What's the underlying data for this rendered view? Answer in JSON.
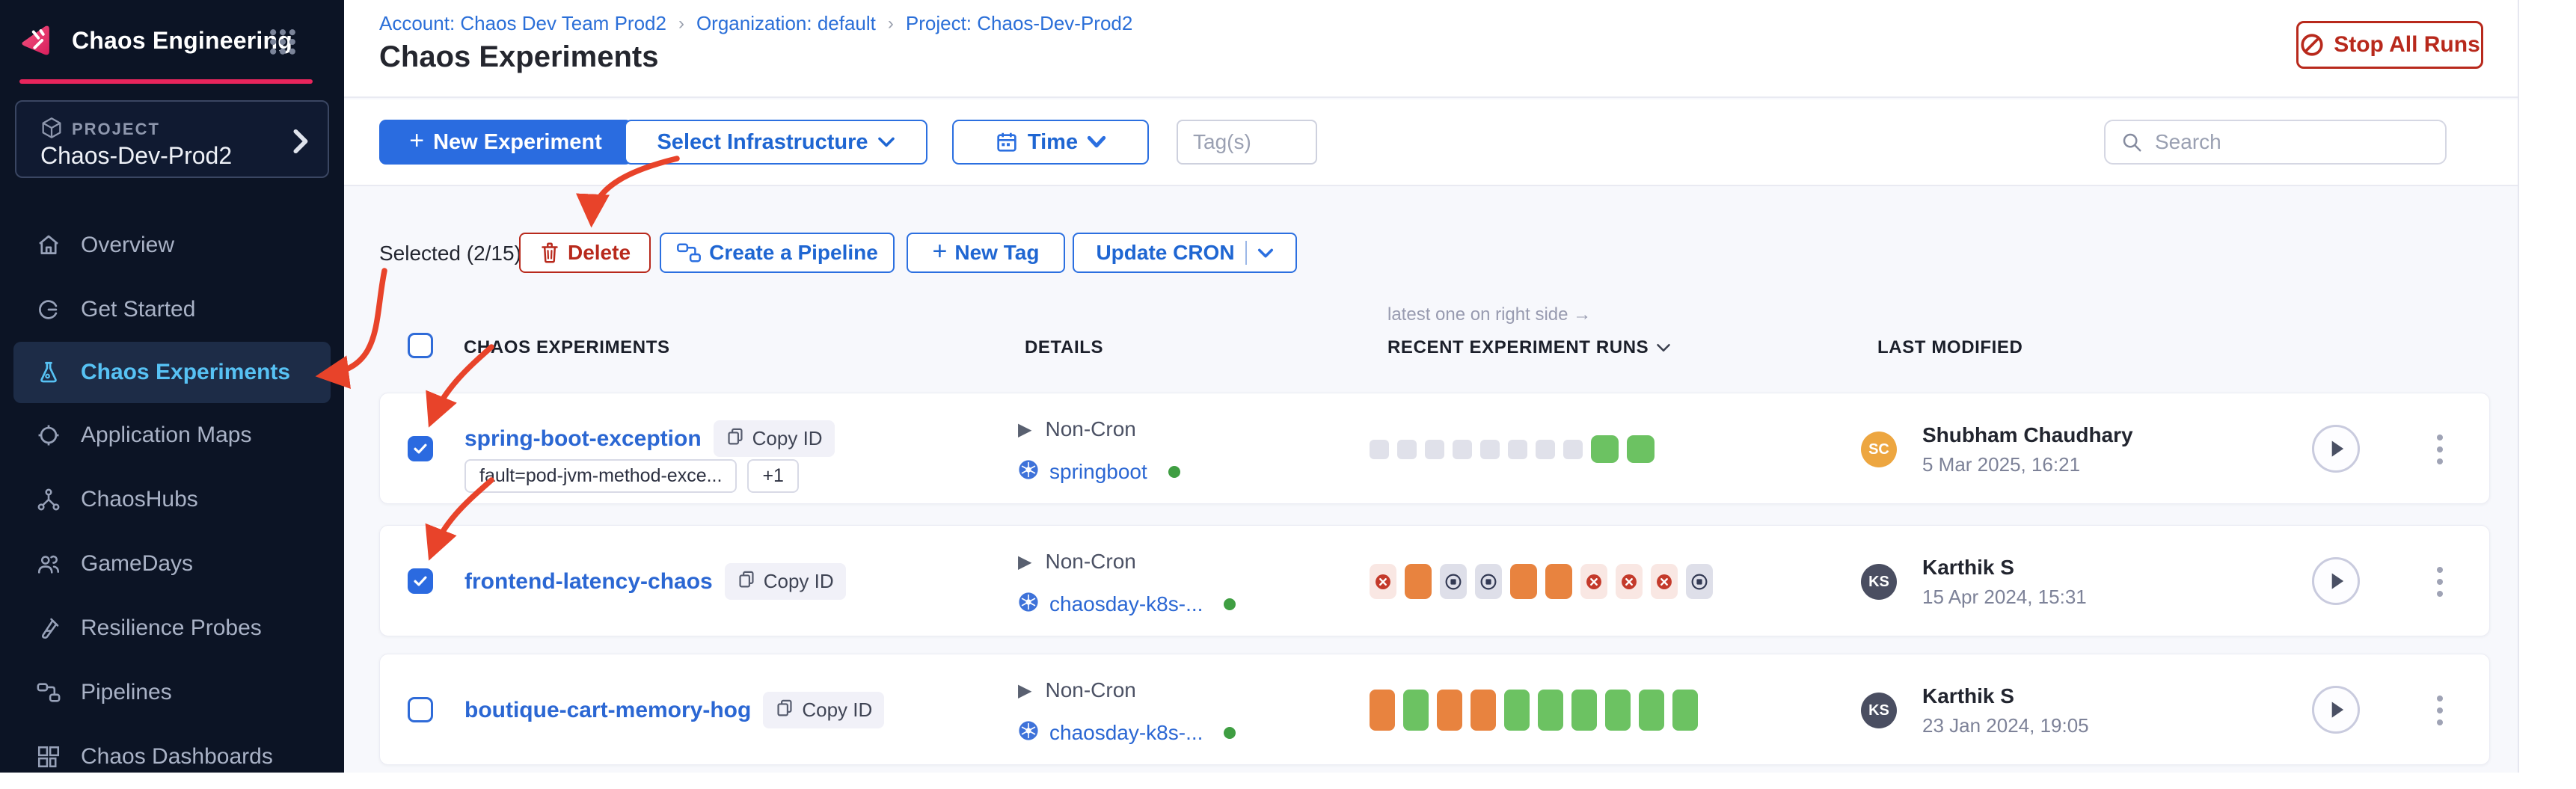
{
  "brand": {
    "title": "Chaos Engineering"
  },
  "project": {
    "label": "PROJECT",
    "name": "Chaos-Dev-Prod2"
  },
  "sidebar": {
    "items": [
      {
        "label": "Overview",
        "icon": "home",
        "active": false
      },
      {
        "label": "Get Started",
        "icon": "get-started",
        "active": false
      },
      {
        "label": "Chaos Experiments",
        "icon": "flask",
        "active": true
      },
      {
        "label": "Application Maps",
        "icon": "target",
        "active": false
      },
      {
        "label": "ChaosHubs",
        "icon": "network",
        "active": false
      },
      {
        "label": "GameDays",
        "icon": "people",
        "active": false
      },
      {
        "label": "Resilience Probes",
        "icon": "test-tube",
        "active": false
      },
      {
        "label": "Pipelines",
        "icon": "pipeline",
        "active": false
      },
      {
        "label": "Chaos Dashboards",
        "icon": "dashboard",
        "active": false
      }
    ]
  },
  "header": {
    "breadcrumb": [
      "Account: Chaos Dev Team Prod2",
      "Organization: default",
      "Project: Chaos-Dev-Prod2"
    ],
    "title": "Chaos Experiments",
    "stop_all_runs": "Stop All Runs"
  },
  "toolbar": {
    "new_experiment": "New Experiment",
    "select_infrastructure": "Select Infrastructure",
    "time": "Time",
    "tags_placeholder": "Tag(s)",
    "search_placeholder": "Search"
  },
  "bulkbar": {
    "selected": "Selected (2/15)",
    "delete": "Delete",
    "create_pipeline": "Create a Pipeline",
    "new_tag": "New Tag",
    "update_cron": "Update CRON"
  },
  "icons": {
    "plus": "+"
  },
  "table": {
    "note": "latest one on right side →",
    "headers": {
      "experiments": "CHAOS EXPERIMENTS",
      "details": "DETAILS",
      "runs": "RECENT EXPERIMENT RUNS",
      "modified": "LAST MODIFIED"
    },
    "rows": [
      {
        "checked": true,
        "name": "spring-boot-exception",
        "copy_id": "Copy ID",
        "tags": [
          "fault=pod-jvm-method-exce...",
          "+1"
        ],
        "cron": "Non-Cron",
        "infra": "springboot",
        "runs": [
          {
            "t": "gray",
            "s": "xs"
          },
          {
            "t": "gray",
            "s": "xs"
          },
          {
            "t": "gray",
            "s": "xs"
          },
          {
            "t": "gray",
            "s": "xs"
          },
          {
            "t": "gray",
            "s": "xs"
          },
          {
            "t": "gray",
            "s": "xs"
          },
          {
            "t": "gray",
            "s": "xs"
          },
          {
            "t": "gray",
            "s": "xs"
          },
          {
            "t": "green",
            "s": "sq"
          },
          {
            "t": "green",
            "s": "sq"
          }
        ],
        "user": {
          "initials": "SC",
          "name": "Shubham Chaudhary",
          "date": "5 Mar 2025, 16:21",
          "color": "#EDA640"
        }
      },
      {
        "checked": true,
        "name": "frontend-latency-chaos",
        "copy_id": "Copy ID",
        "tags": [],
        "cron": "Non-Cron",
        "infra": "chaosday-k8s-...",
        "runs": [
          {
            "t": "failed",
            "s": "md"
          },
          {
            "t": "orange",
            "s": "md"
          },
          {
            "t": "stopped",
            "s": "md"
          },
          {
            "t": "stopped",
            "s": "md"
          },
          {
            "t": "orange",
            "s": "md"
          },
          {
            "t": "orange",
            "s": "md"
          },
          {
            "t": "failed",
            "s": "md"
          },
          {
            "t": "failed",
            "s": "md"
          },
          {
            "t": "failed",
            "s": "md"
          },
          {
            "t": "stopped",
            "s": "md"
          }
        ],
        "user": {
          "initials": "KS",
          "name": "Karthik S",
          "date": "15 Apr 2024, 15:31",
          "color": "#4A4E61"
        }
      },
      {
        "checked": false,
        "name": "boutique-cart-memory-hog",
        "copy_id": "Copy ID",
        "tags": [],
        "cron": "Non-Cron",
        "infra": "chaosday-k8s-...",
        "runs": [
          {
            "t": "orange",
            "s": "tall"
          },
          {
            "t": "green",
            "s": "tall"
          },
          {
            "t": "orange",
            "s": "tall"
          },
          {
            "t": "orange",
            "s": "tall"
          },
          {
            "t": "green",
            "s": "tall"
          },
          {
            "t": "green",
            "s": "tall"
          },
          {
            "t": "green",
            "s": "tall"
          },
          {
            "t": "green",
            "s": "tall"
          },
          {
            "t": "green",
            "s": "tall"
          },
          {
            "t": "green",
            "s": "tall"
          }
        ],
        "user": {
          "initials": "KS",
          "name": "Karthik S",
          "date": "23 Jan 2024, 19:05",
          "color": "#4A4E61"
        }
      }
    ]
  },
  "colors": {
    "accent_blue": "#2A6CE0",
    "link_blue": "#2B67D3",
    "danger_red": "#B8291C",
    "annotation_red": "#E8432A",
    "run_green": "#6CC262",
    "run_orange": "#E8833F",
    "sidebar_bg": "#0C1425",
    "active_item": "#57C2F4",
    "brand_pink": "#E8255C"
  }
}
